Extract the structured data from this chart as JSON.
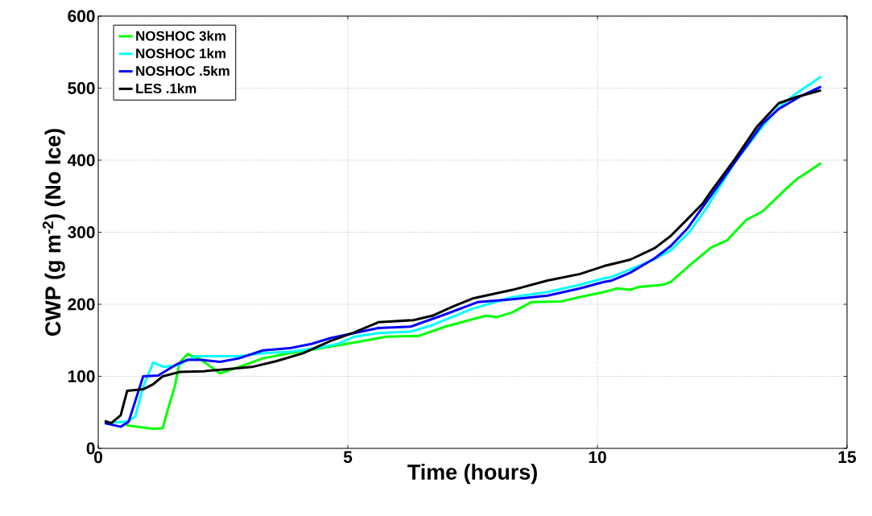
{
  "chart_data": {
    "type": "line",
    "xlabel": "Time (hours)",
    "ylabel": "CWP (g m$^{-2}$) (No Ice)",
    "xlim": [
      0,
      15
    ],
    "ylim": [
      0,
      600
    ],
    "xticks": [
      0,
      5,
      10,
      15
    ],
    "yticks": [
      0,
      100,
      200,
      300,
      400,
      500,
      600
    ],
    "grid": true,
    "legend": "top left",
    "line_style": "solid",
    "marker": "none",
    "series": [
      {
        "name": "NOSHOC 3km",
        "color": "#00ff00",
        "x": [
          0.56,
          1.1,
          1.29,
          1.42,
          1.53,
          1.63,
          1.79,
          2.06,
          2.44,
          2.82,
          3.3,
          3.84,
          4.37,
          4.8,
          5.13,
          5.77,
          6.42,
          6.95,
          7.76,
          7.98,
          8.3,
          8.68,
          9.27,
          9.65,
          10.13,
          10.4,
          10.66,
          10.82,
          11.31,
          11.47,
          11.9,
          12.28,
          12.6,
          12.98,
          13.31,
          13.79,
          14.0,
          14.48
        ],
        "values": [
          32,
          27,
          28,
          60,
          85,
          119,
          131,
          123,
          104,
          113,
          125,
          132,
          138,
          143,
          147,
          155,
          156,
          169,
          184,
          182,
          189,
          203,
          204,
          210,
          217,
          222,
          220,
          224,
          227,
          231,
          257,
          279,
          289,
          317,
          329,
          361,
          374,
          396
        ]
      },
      {
        "name": "NOSHOC 1km",
        "color": "#00ffff",
        "x": [
          0.13,
          0.56,
          0.74,
          0.9,
          1.1,
          1.31,
          1.58,
          1.95,
          2.5,
          2.82,
          3.3,
          3.84,
          4.37,
          4.8,
          5.13,
          5.61,
          6.26,
          6.69,
          7.5,
          8.3,
          9.0,
          9.65,
          10.13,
          10.29,
          11.1,
          11.47,
          11.85,
          12.18,
          12.76,
          13.31,
          13.63,
          13.95,
          14.48
        ],
        "values": [
          35,
          37,
          44,
          85,
          119,
          113,
          115,
          128,
          128,
          128,
          132,
          134,
          139,
          145,
          155,
          160,
          162,
          171,
          194,
          210,
          217,
          227,
          236,
          238,
          261,
          275,
          301,
          333,
          398,
          447,
          473,
          491,
          516
        ]
      },
      {
        "name": "NOSHOC .5km",
        "color": "#0000ff",
        "x": [
          0.13,
          0.45,
          0.61,
          0.9,
          1.2,
          1.58,
          1.79,
          2.06,
          2.44,
          2.82,
          3.3,
          3.84,
          4.27,
          4.65,
          5.13,
          5.61,
          6.26,
          6.95,
          7.6,
          8.3,
          9.0,
          9.65,
          10.13,
          10.29,
          10.66,
          11.15,
          11.47,
          11.8,
          12.11,
          12.76,
          13.31,
          13.63,
          14.05,
          14.48
        ],
        "values": [
          35,
          30,
          37,
          100,
          101,
          117,
          123,
          123,
          120,
          125,
          136,
          139,
          145,
          153,
          160,
          167,
          169,
          186,
          203,
          207,
          212,
          222,
          231,
          233,
          244,
          264,
          281,
          305,
          335,
          398,
          451,
          471,
          488,
          502
        ]
      },
      {
        "name": "LES .1km",
        "color": "#000000",
        "x": [
          0.13,
          0.26,
          0.45,
          0.58,
          0.9,
          1.1,
          1.29,
          1.63,
          2.11,
          2.6,
          3.08,
          3.56,
          4.1,
          4.65,
          5.13,
          5.61,
          6.31,
          6.69,
          7.11,
          7.5,
          8.3,
          9.0,
          9.65,
          10.13,
          10.66,
          11.15,
          11.47,
          11.8,
          12.11,
          12.28,
          12.76,
          13.19,
          13.63,
          14.0,
          14.48
        ],
        "values": [
          38,
          35,
          46,
          80,
          82,
          89,
          100,
          106,
          107,
          110,
          113,
          121,
          132,
          149,
          161,
          175,
          178,
          184,
          197,
          208,
          220,
          233,
          242,
          253,
          262,
          278,
          295,
          318,
          340,
          357,
          402,
          446,
          479,
          488,
          497
        ]
      }
    ]
  }
}
